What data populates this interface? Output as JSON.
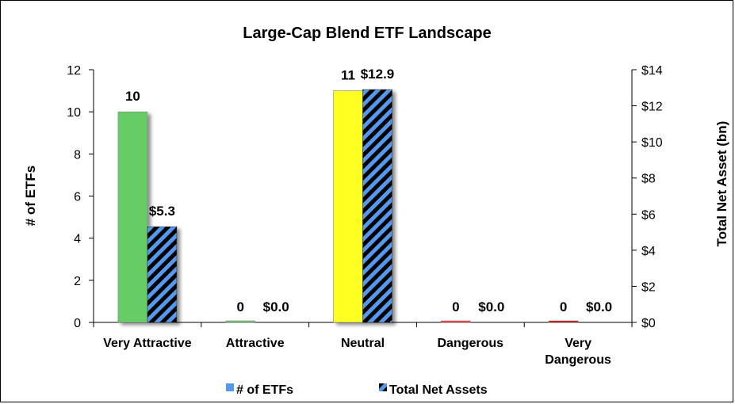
{
  "chart_data": {
    "type": "bar",
    "title": "Large-Cap Blend ETF Landscape",
    "categories": [
      "Very Attractive",
      "Attractive",
      "Neutral",
      "Dangerous",
      "Very Dangerous"
    ],
    "category_lines": [
      [
        "Very Attractive"
      ],
      [
        "Attractive"
      ],
      [
        "Neutral"
      ],
      [
        "Dangerous"
      ],
      [
        "Very",
        "Dangerous"
      ]
    ],
    "series": [
      {
        "name": "# of ETFs",
        "axis": "left",
        "values": [
          10,
          0,
          11,
          0,
          0
        ],
        "value_labels": [
          "10",
          "0",
          "11",
          "0",
          "0"
        ],
        "bar_colors": [
          "#66cc66",
          "#66cc66",
          "#ffff22",
          "#ff3333",
          "#cc0000"
        ],
        "legend_color": "#5599ee"
      },
      {
        "name": "Total Net Assets",
        "axis": "right",
        "values": [
          5.3,
          0.0,
          12.9,
          0.0,
          0.0
        ],
        "value_labels": [
          "$5.3",
          "$0.0",
          "$12.9",
          "$0.0",
          "$0.0"
        ],
        "pattern": "diagonal-stripes",
        "stripe_colors": [
          "#5599ee",
          "#000000"
        ]
      }
    ],
    "ylabel": "# of ETFs",
    "ylabel_right": "Total Net Asset (bn)",
    "ylim": [
      0,
      12
    ],
    "ylim_right": [
      0,
      14
    ],
    "yticks": [
      "0",
      "2",
      "4",
      "6",
      "8",
      "10",
      "12"
    ],
    "yticks_right": [
      "$0",
      "$2",
      "$4",
      "$6",
      "$8",
      "$10",
      "$12",
      "$14"
    ],
    "grid": false,
    "legend_position": "bottom"
  }
}
